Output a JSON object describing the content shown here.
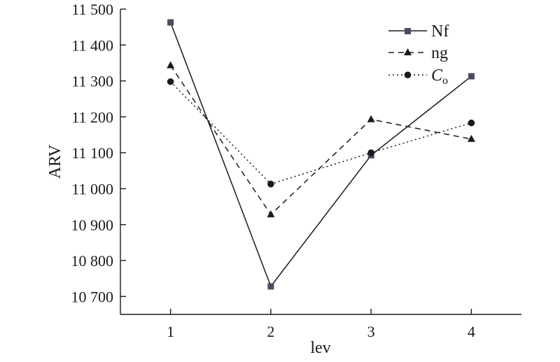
{
  "chart_data": {
    "type": "line",
    "xlabel": "lev",
    "ylabel": "ARV",
    "x": [
      1,
      2,
      3,
      4
    ],
    "xticks": [
      "1",
      "2",
      "3",
      "4"
    ],
    "xlim": [
      0.5,
      4.5
    ],
    "ylim": [
      10650,
      11500
    ],
    "yticks": [
      "10 700",
      "10 800",
      "10 900",
      "11 000",
      "11 100",
      "11 200",
      "11 300",
      "11 400",
      "11 500"
    ],
    "ytick_values": [
      10700,
      10800,
      10900,
      11000,
      11100,
      11200,
      11300,
      11400,
      11500
    ],
    "grid": false,
    "legend_position": "top-right",
    "series": [
      {
        "name": "Nf",
        "values": [
          11463,
          10728,
          11093,
          11313
        ],
        "line": "solid",
        "marker": "square",
        "color": "#4a4a63"
      },
      {
        "name": "ng",
        "values": [
          11343,
          10928,
          11193,
          11138
        ],
        "line": "dashed",
        "marker": "triangle",
        "color": "#1a1a1a"
      },
      {
        "name": "C",
        "name_subscript": "o",
        "values": [
          11298,
          11013,
          11100,
          11183
        ],
        "line": "dotted",
        "marker": "circle",
        "color": "#1a1a1a"
      }
    ]
  }
}
